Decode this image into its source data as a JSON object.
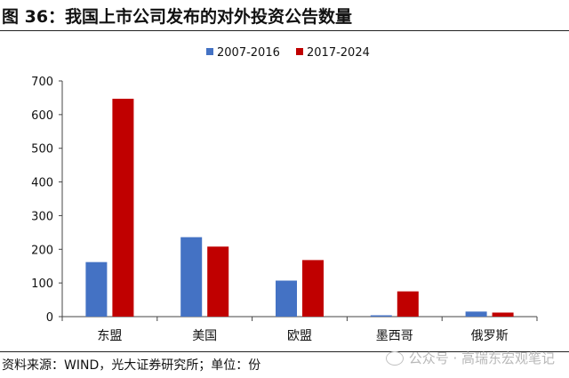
{
  "title": "图 36：我国上市公司发布的对外投资公告数量",
  "source": "资料来源：WIND，光大证券研究所；单位：份",
  "watermark": "公众号 · 高瑞东宏观笔记",
  "chart_data": {
    "type": "bar",
    "categories": [
      "东盟",
      "美国",
      "欧盟",
      "墨西哥",
      "俄罗斯"
    ],
    "series": [
      {
        "name": "2007-2016",
        "color": "#4472c4",
        "values": [
          162,
          236,
          107,
          4,
          15
        ]
      },
      {
        "name": "2017-2024",
        "color": "#c00000",
        "values": [
          647,
          208,
          168,
          75,
          12
        ]
      }
    ],
    "ylim": [
      0,
      700
    ],
    "yticks": [
      0,
      100,
      200,
      300,
      400,
      500,
      600,
      700
    ],
    "legend": "top-center",
    "grid": false
  }
}
